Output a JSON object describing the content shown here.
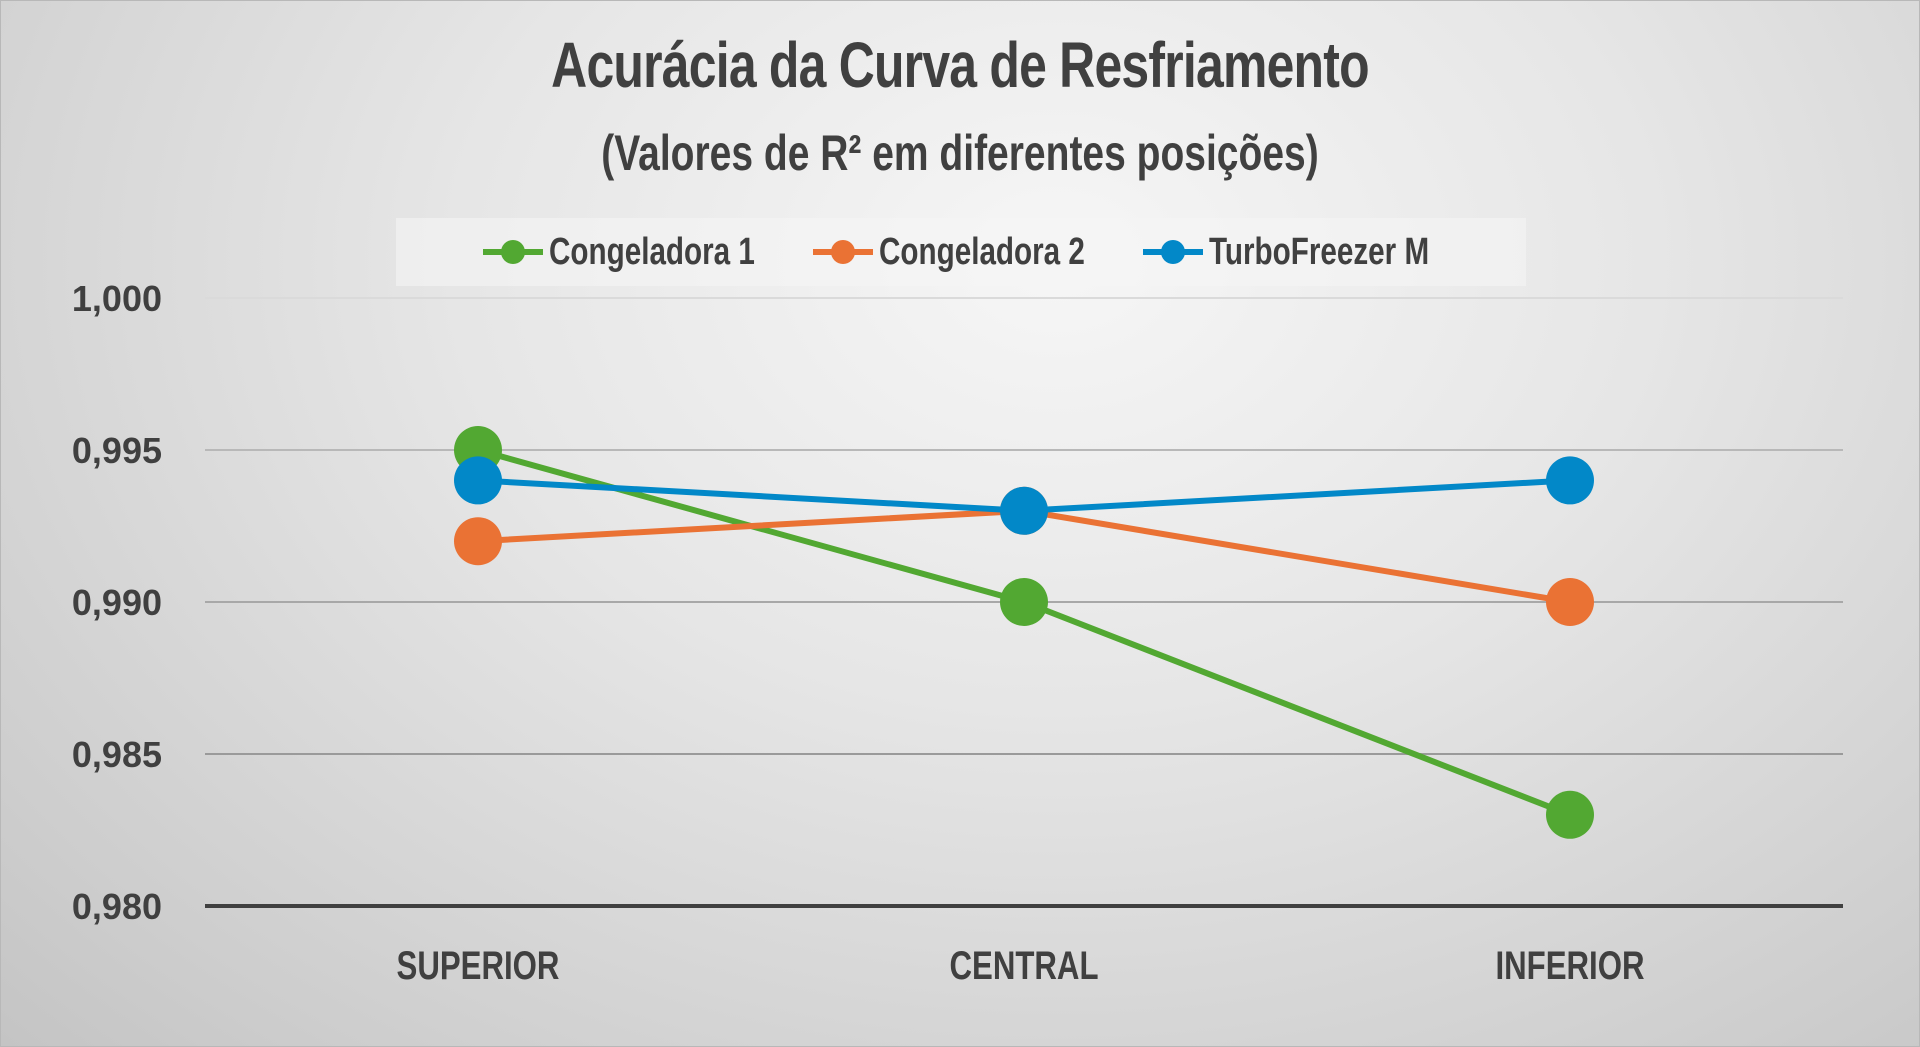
{
  "chart": {
    "title": "Acurácia da Curva de Resfriamento",
    "subtitle": "(Valores de R² em diferentes posições)"
  },
  "legend": [
    {
      "label": "Congeladora 1",
      "color": "#52a832"
    },
    {
      "label": "Congeladora 2",
      "color": "#ea7234"
    },
    {
      "label": "TurboFreezer M",
      "color": "#0288c8"
    }
  ],
  "axes": {
    "y_ticks": [
      "1,000",
      "0,995",
      "0,990",
      "0,985",
      "0,980"
    ],
    "x_ticks": [
      "SUPERIOR",
      "CENTRAL",
      "INFERIOR"
    ]
  },
  "chart_data": {
    "type": "line",
    "title": "Acurácia da Curva de Resfriamento",
    "subtitle": "(Valores de R² em diferentes posições)",
    "categories": [
      "SUPERIOR",
      "CENTRAL",
      "INFERIOR"
    ],
    "series": [
      {
        "name": "Congeladora 1",
        "color": "#52a832",
        "values": [
          0.995,
          0.99,
          0.983
        ]
      },
      {
        "name": "Congeladora 2",
        "color": "#ea7234",
        "values": [
          0.992,
          0.993,
          0.99
        ]
      },
      {
        "name": "TurboFreezer M",
        "color": "#0288c8",
        "values": [
          0.994,
          0.993,
          0.994
        ]
      }
    ],
    "xlabel": "",
    "ylabel": "",
    "ylim": [
      0.98,
      1.0
    ],
    "y_tick_step": 0.005,
    "grid": true,
    "legend_position": "top",
    "markers": "circle"
  }
}
